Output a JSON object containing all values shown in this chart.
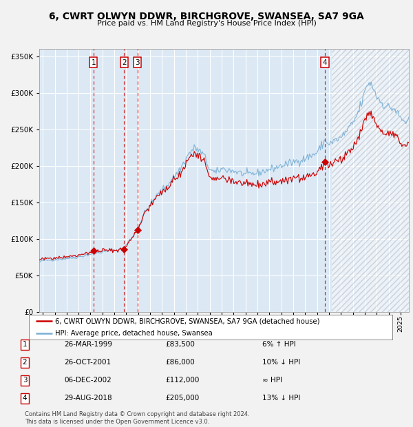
{
  "title": "6, CWRT OLWYN DDWR, BIRCHGROVE, SWANSEA, SA7 9GA",
  "subtitle": "Price paid vs. HM Land Registry's House Price Index (HPI)",
  "fig_bg_color": "#f2f2f2",
  "plot_bg_color": "#dce9f5",
  "red_line_color": "#cc0000",
  "blue_line_color": "#7aafd4",
  "grid_color": "#ffffff",
  "dashed_line_color": "#cc0000",
  "transactions": [
    {
      "label": "1",
      "date_num": 1999.24,
      "price": 83500,
      "date_str": "26-MAR-1999",
      "note": "6% ↑ HPI"
    },
    {
      "label": "2",
      "date_num": 2001.82,
      "price": 86000,
      "date_str": "26-OCT-2001",
      "note": "10% ↓ HPI"
    },
    {
      "label": "3",
      "date_num": 2002.93,
      "price": 112000,
      "date_str": "06-DEC-2002",
      "note": "≈ HPI"
    },
    {
      "label": "4",
      "date_num": 2018.66,
      "price": 205000,
      "date_str": "29-AUG-2018",
      "note": "13% ↓ HPI"
    }
  ],
  "legend_entries": [
    "6, CWRT OLWYN DDWR, BIRCHGROVE, SWANSEA, SA7 9GA (detached house)",
    "HPI: Average price, detached house, Swansea"
  ],
  "footer": "Contains HM Land Registry data © Crown copyright and database right 2024.\nThis data is licensed under the Open Government Licence v3.0.",
  "ylim": [
    0,
    360000
  ],
  "xlim": [
    1994.7,
    2025.7
  ],
  "yticks": [
    0,
    50000,
    100000,
    150000,
    200000,
    250000,
    300000,
    350000
  ],
  "ytick_labels": [
    "£0",
    "£50K",
    "£100K",
    "£150K",
    "£200K",
    "£250K",
    "£300K",
    "£350K"
  ],
  "hatch_start": 2019.25
}
